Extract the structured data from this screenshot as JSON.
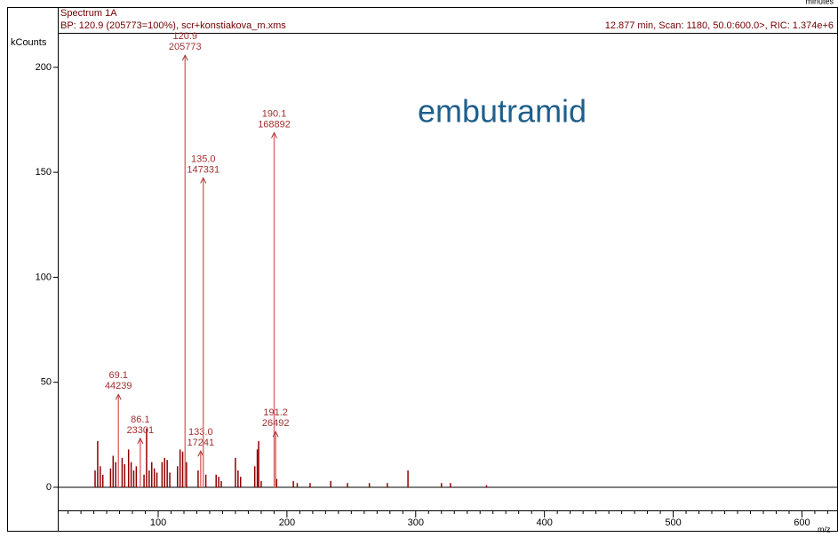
{
  "chart_data": {
    "type": "spectrum",
    "top_label": "minutes",
    "title": "Spectrum 1A",
    "subtitle": "BP: 120.9 (205773=100%), scr+konstiakova_m.xms",
    "scan_info": "12.877 min, Scan: 1180, 50.0:600.0>, RIC: 1.374e+6",
    "ylabel": "kCounts",
    "xlabel": "m/z",
    "annotation": "embutramid",
    "xlim": [
      22,
      628
    ],
    "ylim": [
      -11,
      216
    ],
    "xticks": [
      100,
      200,
      300,
      400,
      500,
      600
    ],
    "xminorticks": [
      30,
      40,
      50,
      60,
      70,
      80,
      90,
      110,
      120,
      130,
      140,
      150,
      160,
      170,
      180,
      190,
      210,
      220,
      230,
      240,
      250,
      260,
      270,
      280,
      290,
      310,
      320,
      330,
      340,
      350,
      360,
      370,
      380,
      390,
      410,
      420,
      430,
      440,
      450,
      460,
      470,
      480,
      490,
      510,
      520,
      530,
      540,
      550,
      560,
      570,
      580,
      590,
      610,
      620
    ],
    "yticks": [
      0,
      50,
      100,
      150,
      200
    ],
    "labeled_peaks": {
      "color": "#e07070",
      "label_color": "#a03030",
      "x": [
        69.1,
        86.1,
        120.9,
        133.0,
        135.0,
        190.1,
        191.2
      ],
      "x_labels": [
        "69.1",
        "86.1",
        "120.9",
        "133.0",
        "135.0",
        "190.1",
        "191.2"
      ],
      "values": [
        44.239,
        23.301,
        205.773,
        17.241,
        147.331,
        168.892,
        26.492
      ],
      "value_labels": [
        "44239",
        "23301",
        "205773",
        "17241",
        "147331",
        "168892",
        "26492"
      ]
    },
    "peaks": {
      "color": "#900000",
      "x": [
        51,
        53,
        55,
        57,
        63,
        65,
        67,
        72,
        74,
        77,
        79,
        81,
        83,
        89,
        91,
        93,
        95,
        97,
        99,
        103,
        105,
        107,
        109,
        115,
        117,
        119,
        122,
        131,
        137,
        145,
        147,
        149,
        160,
        162,
        164,
        175,
        177,
        178,
        180,
        192,
        205,
        208,
        218,
        234,
        247,
        264,
        278,
        294,
        320,
        327,
        355
      ],
      "values": [
        8,
        22,
        10,
        6,
        9,
        15,
        12,
        14,
        11,
        18,
        12,
        8,
        10,
        6,
        28,
        8,
        12,
        9,
        7,
        12,
        14,
        13,
        7,
        10,
        18,
        17,
        12,
        8,
        6,
        6,
        5,
        3,
        14,
        8,
        5,
        10,
        18,
        22,
        3,
        4,
        3,
        2,
        2,
        3,
        2,
        2,
        2,
        8,
        2,
        2,
        1
      ]
    }
  }
}
